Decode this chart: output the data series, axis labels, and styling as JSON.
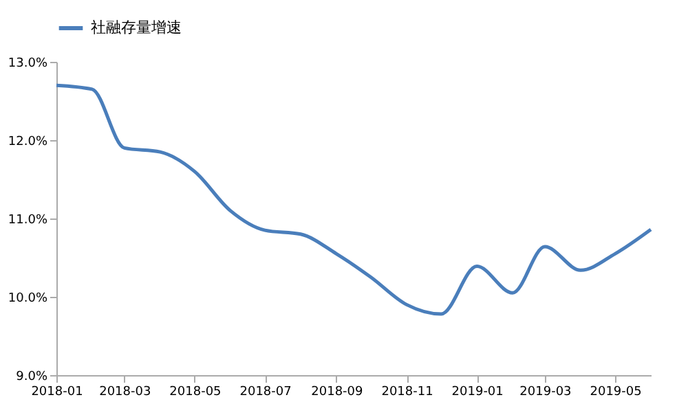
{
  "chart_data": {
    "type": "line",
    "x": [
      "2018-01",
      "2018-02",
      "2018-03",
      "2018-04",
      "2018-05",
      "2018-06",
      "2018-07",
      "2018-08",
      "2018-09",
      "2018-10",
      "2018-11",
      "2018-12",
      "2019-01",
      "2019-02",
      "2019-03",
      "2019-04",
      "2019-05",
      "2019-06"
    ],
    "series": [
      {
        "name": "社融存量增速",
        "color": "#4a7ebb",
        "values": [
          12.7,
          12.65,
          11.9,
          11.85,
          11.6,
          11.1,
          10.85,
          10.8,
          10.55,
          10.25,
          9.9,
          9.78,
          10.39,
          10.05,
          10.64,
          10.34,
          10.55,
          10.86
        ]
      }
    ],
    "ylim": [
      9,
      13
    ],
    "yticks": [
      {
        "value": 9,
        "label": "9.0%"
      },
      {
        "value": 10,
        "label": "10.0%"
      },
      {
        "value": 11,
        "label": "11.0%"
      },
      {
        "value": 12,
        "label": "12.0%"
      },
      {
        "value": 13,
        "label": "13.0%"
      }
    ],
    "xlim": [
      "2018-01",
      "2019-06"
    ],
    "xticks": [
      "2018-01",
      "2018-03",
      "2018-05",
      "2018-07",
      "2018-09",
      "2018-11",
      "2019-01",
      "2019-03",
      "2019-05"
    ],
    "grid": false,
    "legend": "top",
    "marker": "none",
    "line_style": "solid"
  }
}
